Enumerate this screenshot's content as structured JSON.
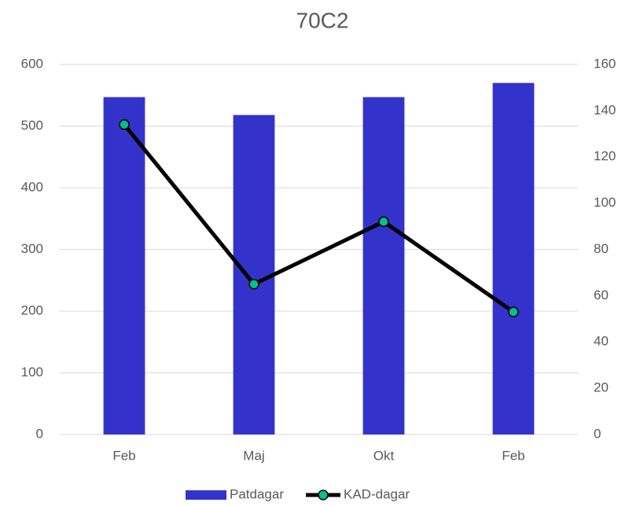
{
  "chart_data": {
    "type": "bar",
    "title": "70C2",
    "categories": [
      "Feb",
      "Maj",
      "Okt",
      "Feb"
    ],
    "series": [
      {
        "name": "Patdagar",
        "type": "bar",
        "color": "#3333cc",
        "values": [
          547,
          518,
          547,
          570
        ]
      },
      {
        "name": "KAD-dagar",
        "type": "line",
        "axis": "y2",
        "color": "#000000",
        "marker_color": "#00c08b",
        "values": [
          134,
          65,
          92,
          53
        ]
      }
    ],
    "ylim": [
      0,
      600
    ],
    "yticks": [
      0,
      100,
      200,
      300,
      400,
      500,
      600
    ],
    "y2lim": [
      0,
      160
    ],
    "y2ticks": [
      0,
      20,
      40,
      60,
      80,
      100,
      120,
      140,
      160
    ],
    "grid": true,
    "legend": "bottom"
  }
}
